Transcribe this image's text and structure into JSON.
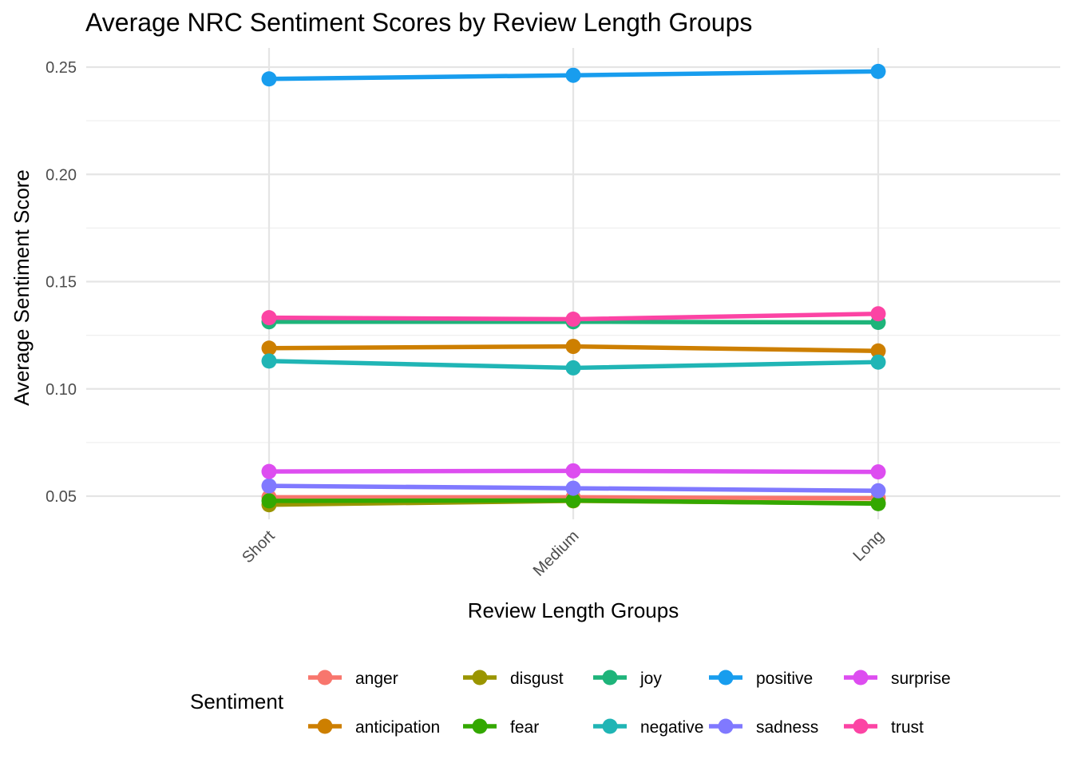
{
  "chart_data": {
    "type": "line",
    "title": "Average NRC Sentiment Scores by Review Length Groups",
    "xlabel": "Review Length Groups",
    "ylabel": "Average Sentiment Score",
    "categories": [
      "Short",
      "Medium",
      "Long"
    ],
    "ylim": [
      0.04,
      0.26
    ],
    "yticks": [
      0.05,
      0.1,
      0.15,
      0.2,
      0.25
    ],
    "ytick_labels": [
      "0.05",
      "0.10",
      "0.15",
      "0.20",
      "0.25"
    ],
    "grid": true,
    "legend": {
      "title": "Sentiment",
      "position": "bottom"
    },
    "series": [
      {
        "name": "anger",
        "color": "#F8766D",
        "values": [
          0.0495,
          0.0495,
          0.049
        ]
      },
      {
        "name": "anticipation",
        "color": "#CD7F00",
        "values": [
          0.119,
          0.1198,
          0.1177
        ]
      },
      {
        "name": "disgust",
        "color": "#9A9500",
        "values": [
          0.046,
          0.0478,
          0.0467
        ]
      },
      {
        "name": "fear",
        "color": "#33A800",
        "values": [
          0.0478,
          0.048,
          0.0465
        ]
      },
      {
        "name": "joy",
        "color": "#1EB47A",
        "values": [
          0.1313,
          0.1313,
          0.131
        ]
      },
      {
        "name": "negative",
        "color": "#20B5B5",
        "values": [
          0.113,
          0.1098,
          0.1125
        ]
      },
      {
        "name": "positive",
        "color": "#189DEE",
        "values": [
          0.2445,
          0.2462,
          0.248
        ]
      },
      {
        "name": "sadness",
        "color": "#8079FF",
        "values": [
          0.0548,
          0.0537,
          0.0525
        ]
      },
      {
        "name": "surprise",
        "color": "#DD4DF0",
        "values": [
          0.0615,
          0.0618,
          0.0613
        ]
      },
      {
        "name": "trust",
        "color": "#FC44A4",
        "values": [
          0.1332,
          0.1325,
          0.135
        ]
      }
    ]
  }
}
